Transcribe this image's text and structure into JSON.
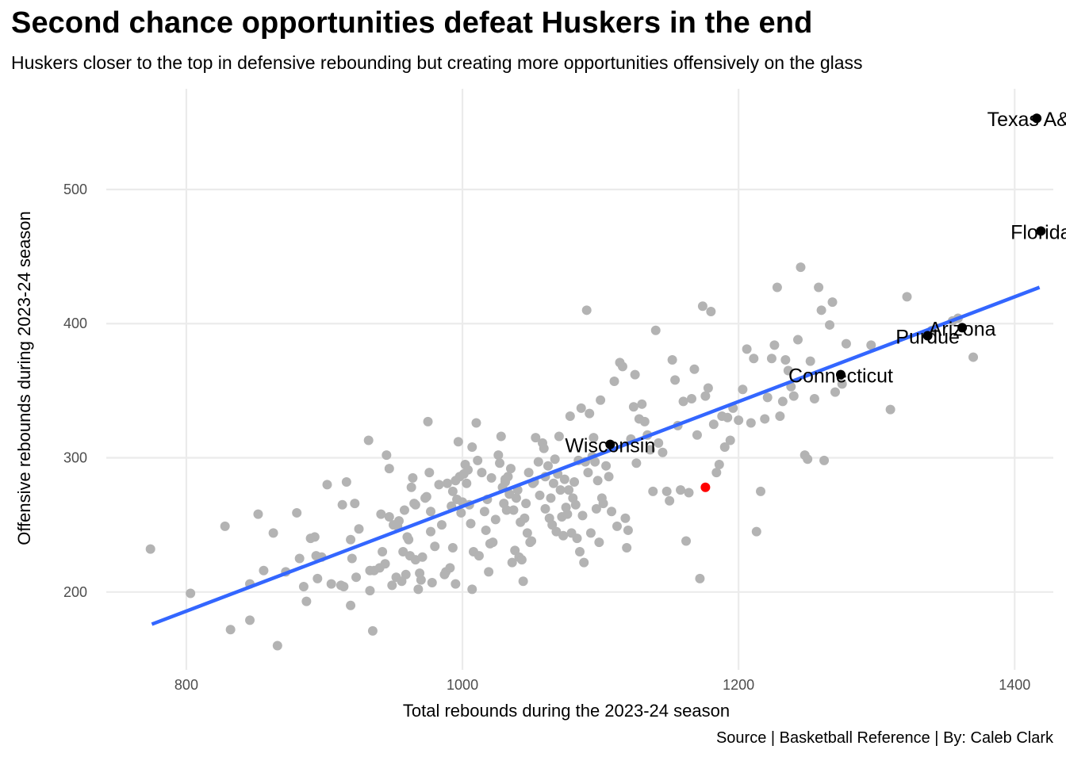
{
  "title": "Second chance opportunities defeat Huskers in the end",
  "subtitle": "Huskers closer to the top in defensive rebounding but creating more opportunities offensively on the glass",
  "caption": "Source | Basketball Reference | By: Caleb Clark",
  "colors": {
    "points": "#b3b3b3",
    "highlight_points": "#000000",
    "nebraska": "#ff0000",
    "trend_line": "#3366ff",
    "grid": "#ebebeb"
  },
  "chart_data": {
    "type": "scatter",
    "xlabel": "Total rebounds during the 2023-24 season",
    "ylabel": "Offensive rebounds during 2023-24 season",
    "xlim": [
      742,
      1428
    ],
    "ylim": [
      142,
      575
    ],
    "x_ticks": [
      800,
      1000,
      1200,
      1400
    ],
    "y_ticks": [
      200,
      300,
      400,
      500
    ],
    "grid": true,
    "trend_line": {
      "x": [
        775,
        1418
      ],
      "y": [
        176,
        427
      ]
    },
    "nebraska": {
      "x": 1176,
      "y": 278
    },
    "labeled_teams": [
      {
        "name": "Texas A&M",
        "x": 1416,
        "y": 553
      },
      {
        "name": "Florida",
        "x": 1419,
        "y": 469
      },
      {
        "name": "Arizona",
        "x": 1362,
        "y": 397
      },
      {
        "name": "Purdue",
        "x": 1337,
        "y": 391
      },
      {
        "name": "Connecticut",
        "x": 1274,
        "y": 362
      },
      {
        "name": "Wisconsin",
        "x": 1107,
        "y": 310
      }
    ],
    "other_teams": [
      [
        774,
        232
      ],
      [
        803,
        199
      ],
      [
        828,
        249
      ],
      [
        832,
        172
      ],
      [
        846,
        206
      ],
      [
        846,
        179
      ],
      [
        852,
        258
      ],
      [
        856,
        216
      ],
      [
        863,
        244
      ],
      [
        866,
        160
      ],
      [
        872,
        215
      ],
      [
        880,
        259
      ],
      [
        882,
        225
      ],
      [
        885,
        204
      ],
      [
        887,
        193
      ],
      [
        890,
        240
      ],
      [
        893,
        241
      ],
      [
        894,
        227
      ],
      [
        895,
        210
      ],
      [
        898,
        226
      ],
      [
        902,
        280
      ],
      [
        905,
        206
      ],
      [
        912,
        205
      ],
      [
        913,
        265
      ],
      [
        914,
        204
      ],
      [
        916,
        282
      ],
      [
        919,
        239
      ],
      [
        919,
        190
      ],
      [
        920,
        225
      ],
      [
        922,
        266
      ],
      [
        923,
        211
      ],
      [
        925,
        247
      ],
      [
        932,
        313
      ],
      [
        933,
        216
      ],
      [
        933,
        201
      ],
      [
        935,
        171
      ],
      [
        936,
        216
      ],
      [
        940,
        218
      ],
      [
        941,
        258
      ],
      [
        942,
        230
      ],
      [
        944,
        221
      ],
      [
        945,
        302
      ],
      [
        947,
        256
      ],
      [
        947,
        292
      ],
      [
        949,
        205
      ],
      [
        950,
        250
      ],
      [
        952,
        211
      ],
      [
        953,
        249
      ],
      [
        954,
        253
      ],
      [
        956,
        208
      ],
      [
        957,
        230
      ],
      [
        958,
        261
      ],
      [
        959,
        213
      ],
      [
        960,
        241
      ],
      [
        961,
        239
      ],
      [
        962,
        227
      ],
      [
        963,
        278
      ],
      [
        964,
        285
      ],
      [
        965,
        266
      ],
      [
        966,
        224
      ],
      [
        966,
        265
      ],
      [
        968,
        202
      ],
      [
        969,
        214
      ],
      [
        970,
        209
      ],
      [
        971,
        226
      ],
      [
        973,
        270
      ],
      [
        974,
        271
      ],
      [
        975,
        327
      ],
      [
        976,
        289
      ],
      [
        977,
        260
      ],
      [
        977,
        245
      ],
      [
        978,
        207
      ],
      [
        980,
        234
      ],
      [
        983,
        280
      ],
      [
        985,
        250
      ],
      [
        987,
        213
      ],
      [
        988,
        215
      ],
      [
        989,
        281
      ],
      [
        991,
        218
      ],
      [
        992,
        264
      ],
      [
        993,
        275
      ],
      [
        993,
        233
      ],
      [
        995,
        283
      ],
      [
        995,
        206
      ],
      [
        996,
        269
      ],
      [
        997,
        312
      ],
      [
        998,
        286
      ],
      [
        999,
        259
      ],
      [
        1000,
        267
      ],
      [
        1001,
        288
      ],
      [
        1002,
        295
      ],
      [
        1003,
        281
      ],
      [
        1004,
        291
      ],
      [
        1005,
        265
      ],
      [
        1006,
        251
      ],
      [
        1007,
        308
      ],
      [
        1007,
        202
      ],
      [
        1008,
        230
      ],
      [
        1010,
        326
      ],
      [
        1011,
        298
      ],
      [
        1012,
        227
      ],
      [
        1014,
        289
      ],
      [
        1016,
        260
      ],
      [
        1017,
        246
      ],
      [
        1018,
        269
      ],
      [
        1019,
        215
      ],
      [
        1020,
        236
      ],
      [
        1021,
        285
      ],
      [
        1022,
        237
      ],
      [
        1024,
        254
      ],
      [
        1026,
        302
      ],
      [
        1027,
        296
      ],
      [
        1028,
        316
      ],
      [
        1029,
        278
      ],
      [
        1030,
        266
      ],
      [
        1031,
        284
      ],
      [
        1031,
        282
      ],
      [
        1032,
        261
      ],
      [
        1033,
        286
      ],
      [
        1034,
        273
      ],
      [
        1035,
        292
      ],
      [
        1036,
        222
      ],
      [
        1037,
        261
      ],
      [
        1038,
        231
      ],
      [
        1039,
        270
      ],
      [
        1040,
        276
      ],
      [
        1041,
        226
      ],
      [
        1042,
        252
      ],
      [
        1043,
        224
      ],
      [
        1044,
        208
      ],
      [
        1045,
        255
      ],
      [
        1046,
        266
      ],
      [
        1047,
        244
      ],
      [
        1048,
        289
      ],
      [
        1049,
        237
      ],
      [
        1050,
        238
      ],
      [
        1051,
        281
      ],
      [
        1052,
        282
      ],
      [
        1053,
        315
      ],
      [
        1055,
        297
      ],
      [
        1056,
        272
      ],
      [
        1058,
        311
      ],
      [
        1059,
        307
      ],
      [
        1060,
        286
      ],
      [
        1060,
        262
      ],
      [
        1062,
        294
      ],
      [
        1063,
        255
      ],
      [
        1064,
        270
      ],
      [
        1065,
        250
      ],
      [
        1066,
        281
      ],
      [
        1067,
        299
      ],
      [
        1068,
        245
      ],
      [
        1069,
        288
      ],
      [
        1070,
        316
      ],
      [
        1071,
        276
      ],
      [
        1072,
        256
      ],
      [
        1073,
        242
      ],
      [
        1074,
        284
      ],
      [
        1075,
        263
      ],
      [
        1076,
        258
      ],
      [
        1077,
        276
      ],
      [
        1078,
        331
      ],
      [
        1079,
        244
      ],
      [
        1080,
        270
      ],
      [
        1081,
        282
      ],
      [
        1082,
        265
      ],
      [
        1083,
        240
      ],
      [
        1084,
        298
      ],
      [
        1085,
        230
      ],
      [
        1086,
        337
      ],
      [
        1087,
        257
      ],
      [
        1088,
        222
      ],
      [
        1089,
        297
      ],
      [
        1090,
        410
      ],
      [
        1091,
        289
      ],
      [
        1092,
        333
      ],
      [
        1093,
        244
      ],
      [
        1094,
        301
      ],
      [
        1095,
        315
      ],
      [
        1096,
        297
      ],
      [
        1097,
        262
      ],
      [
        1098,
        283
      ],
      [
        1099,
        237
      ],
      [
        1100,
        343
      ],
      [
        1101,
        270
      ],
      [
        1102,
        266
      ],
      [
        1104,
        294
      ],
      [
        1106,
        286
      ],
      [
        1108,
        260
      ],
      [
        1110,
        357
      ],
      [
        1112,
        249
      ],
      [
        1114,
        371
      ],
      [
        1116,
        368
      ],
      [
        1118,
        255
      ],
      [
        1119,
        233
      ],
      [
        1120,
        246
      ],
      [
        1122,
        314
      ],
      [
        1124,
        338
      ],
      [
        1125,
        362
      ],
      [
        1126,
        296
      ],
      [
        1128,
        329
      ],
      [
        1130,
        340
      ],
      [
        1132,
        327
      ],
      [
        1134,
        317
      ],
      [
        1136,
        306
      ],
      [
        1138,
        275
      ],
      [
        1140,
        395
      ],
      [
        1142,
        311
      ],
      [
        1145,
        304
      ],
      [
        1148,
        275
      ],
      [
        1150,
        268
      ],
      [
        1152,
        373
      ],
      [
        1154,
        358
      ],
      [
        1156,
        324
      ],
      [
        1158,
        276
      ],
      [
        1160,
        342
      ],
      [
        1162,
        238
      ],
      [
        1164,
        274
      ],
      [
        1166,
        344
      ],
      [
        1168,
        366
      ],
      [
        1170,
        317
      ],
      [
        1172,
        210
      ],
      [
        1174,
        413
      ],
      [
        1176,
        346
      ],
      [
        1178,
        352
      ],
      [
        1180,
        409
      ],
      [
        1182,
        325
      ],
      [
        1184,
        289
      ],
      [
        1186,
        295
      ],
      [
        1188,
        331
      ],
      [
        1190,
        308
      ],
      [
        1192,
        330
      ],
      [
        1194,
        313
      ],
      [
        1196,
        337
      ],
      [
        1200,
        328
      ],
      [
        1203,
        351
      ],
      [
        1206,
        381
      ],
      [
        1209,
        326
      ],
      [
        1211,
        374
      ],
      [
        1213,
        245
      ],
      [
        1216,
        275
      ],
      [
        1219,
        329
      ],
      [
        1221,
        345
      ],
      [
        1224,
        374
      ],
      [
        1226,
        384
      ],
      [
        1228,
        427
      ],
      [
        1230,
        331
      ],
      [
        1232,
        342
      ],
      [
        1234,
        373
      ],
      [
        1236,
        365
      ],
      [
        1238,
        353
      ],
      [
        1240,
        346
      ],
      [
        1243,
        388
      ],
      [
        1245,
        442
      ],
      [
        1248,
        302
      ],
      [
        1250,
        299
      ],
      [
        1252,
        372
      ],
      [
        1255,
        344
      ],
      [
        1258,
        427
      ],
      [
        1260,
        410
      ],
      [
        1262,
        298
      ],
      [
        1266,
        399
      ],
      [
        1268,
        416
      ],
      [
        1270,
        349
      ],
      [
        1275,
        355
      ],
      [
        1278,
        385
      ],
      [
        1296,
        384
      ],
      [
        1310,
        336
      ],
      [
        1322,
        420
      ],
      [
        1340,
        395
      ],
      [
        1355,
        402
      ],
      [
        1370,
        375
      ],
      [
        1359,
        404
      ]
    ]
  }
}
